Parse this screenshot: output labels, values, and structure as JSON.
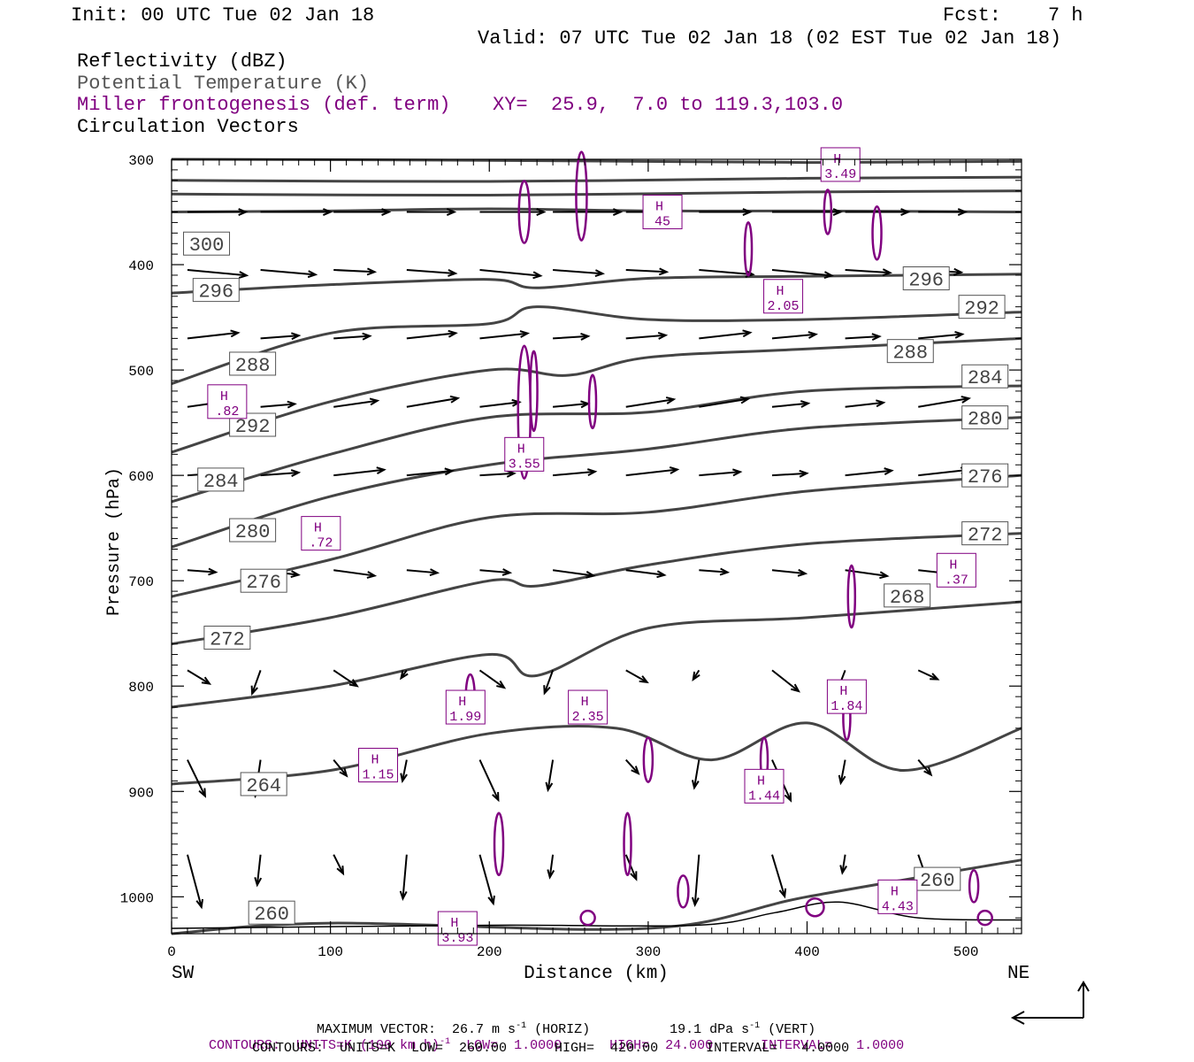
{
  "header": {
    "init": "Init: 00 UTC Tue 02 Jan 18",
    "fcst": "Fcst:    7 h",
    "valid": "Valid: 07 UTC Tue 02 Jan 18 (02 EST Tue 02 Jan 18)"
  },
  "legend": {
    "reflectivity": "Reflectivity (dBZ)",
    "theta": "Potential Temperature (K)",
    "miller": "Miller frontogenesis (def. term)",
    "xy": "XY=  25.9,  7.0 to 119.3,103.0",
    "vectors": "Circulation Vectors"
  },
  "footer": {
    "max_vector": "MAXIMUM VECTOR:  26.7 m s",
    "horiz": " (HORIZ)",
    "vert": "19.1 dPa s",
    "vert_tail": " (VERT)",
    "exp": "-1",
    "contours1_a": "CONTOURS:  UNITS=K (100 km h)",
    "contours1_b": "  LOW=  1.0000      HIGH=  24.000      INTERVAL=   1.0000",
    "contours2": "CONTOURS:  UNITS=K  LOW=  260.00      HIGH=  420.00      INTERVAL=   4.0000"
  },
  "colors": {
    "theta": "#444444",
    "frontogenesis": "#800080",
    "vectors": "#000000"
  },
  "chart_data": {
    "type": "cross-section",
    "xlabel": "Distance (km)",
    "ylabel": "Pressure (hPa)",
    "xlim": [
      0,
      535
    ],
    "ylim": [
      1035,
      300
    ],
    "x_ticks": [
      "0",
      "100",
      "200",
      "300",
      "400",
      "500"
    ],
    "y_ticks": [
      "300",
      "400",
      "500",
      "600",
      "700",
      "800",
      "900",
      "1000"
    ],
    "x_tick_values": [
      0,
      100,
      200,
      300,
      400,
      500
    ],
    "y_tick_values": [
      300,
      400,
      500,
      600,
      700,
      800,
      900,
      1000
    ],
    "left_end": "SW",
    "right_end": "NE",
    "isentropes": [
      {
        "label": "300",
        "label_x": 22,
        "label_p": 380,
        "points": [
          [
            0,
            350
          ],
          [
            100,
            349
          ],
          [
            200,
            347
          ],
          [
            300,
            349
          ],
          [
            400,
            349
          ],
          [
            535,
            350
          ]
        ]
      },
      {
        "label": "296",
        "label_x": 28,
        "label_p": 424,
        "points": [
          [
            0,
            427
          ],
          [
            100,
            419
          ],
          [
            200,
            414
          ],
          [
            230,
            422
          ],
          [
            300,
            413
          ],
          [
            400,
            411
          ],
          [
            535,
            409
          ]
        ]
      },
      {
        "label": "296",
        "label_x": 475,
        "label_p": 413,
        "points": []
      },
      {
        "label": "292",
        "label_x": 510,
        "label_p": 440,
        "points": [
          [
            0,
            513
          ],
          [
            100,
            465
          ],
          [
            200,
            456
          ],
          [
            230,
            440
          ],
          [
            300,
            452
          ],
          [
            400,
            452
          ],
          [
            535,
            445
          ]
        ]
      },
      {
        "label": "288",
        "label_x": 51,
        "label_p": 494,
        "points": [
          [
            0,
            578
          ],
          [
            100,
            530
          ],
          [
            200,
            500
          ],
          [
            250,
            505
          ],
          [
            300,
            488
          ],
          [
            400,
            480
          ],
          [
            535,
            470
          ]
        ]
      },
      {
        "label": "288",
        "label_x": 465,
        "label_p": 482,
        "points": []
      },
      {
        "label": "284",
        "label_x": 512,
        "label_p": 506,
        "points": [
          [
            0,
            625
          ],
          [
            100,
            580
          ],
          [
            200,
            545
          ],
          [
            300,
            540
          ],
          [
            400,
            520
          ],
          [
            535,
            515
          ]
        ]
      },
      {
        "label": "280",
        "label_x": 512,
        "label_p": 545,
        "points": [
          [
            0,
            668
          ],
          [
            100,
            620
          ],
          [
            200,
            590
          ],
          [
            300,
            575
          ],
          [
            400,
            555
          ],
          [
            535,
            545
          ]
        ]
      },
      {
        "label": "276",
        "label_x": 512,
        "label_p": 600,
        "points": [
          [
            0,
            715
          ],
          [
            100,
            680
          ],
          [
            200,
            640
          ],
          [
            300,
            635
          ],
          [
            400,
            615
          ],
          [
            535,
            600
          ]
        ]
      },
      {
        "label": "272",
        "label_x": 512,
        "label_p": 655,
        "points": [
          [
            0,
            760
          ],
          [
            100,
            735
          ],
          [
            200,
            700
          ],
          [
            230,
            705
          ],
          [
            300,
            685
          ],
          [
            400,
            665
          ],
          [
            535,
            655
          ]
        ]
      },
      {
        "label": "268",
        "label_x": 463,
        "label_p": 714,
        "points": [
          [
            0,
            820
          ],
          [
            100,
            800
          ],
          [
            200,
            770
          ],
          [
            230,
            790
          ],
          [
            300,
            745
          ],
          [
            400,
            735
          ],
          [
            535,
            720
          ]
        ]
      },
      {
        "label": "264",
        "label_x": 58,
        "label_p": 893,
        "points": [
          [
            0,
            893
          ],
          [
            100,
            880
          ],
          [
            200,
            845
          ],
          [
            280,
            840
          ],
          [
            340,
            870
          ],
          [
            400,
            835
          ],
          [
            460,
            880
          ],
          [
            535,
            840
          ]
        ]
      },
      {
        "label": "260",
        "label_x": 482,
        "label_p": 983,
        "points": [
          [
            0,
            1035
          ],
          [
            100,
            1025
          ],
          [
            300,
            1030
          ],
          [
            400,
            1000
          ],
          [
            535,
            965
          ]
        ]
      },
      {
        "label": "260",
        "label_x": 63,
        "label_p": 1015,
        "points": []
      },
      {
        "label": "272",
        "label_x": 35,
        "label_p": 754,
        "points": []
      },
      {
        "label": "276",
        "label_x": 58,
        "label_p": 700,
        "points": []
      },
      {
        "label": "280",
        "label_x": 51,
        "label_p": 652,
        "points": []
      },
      {
        "label": "284",
        "label_x": 31,
        "label_p": 604,
        "points": []
      },
      {
        "label": "292",
        "label_x": 51,
        "label_p": 552,
        "points": []
      }
    ],
    "frontogenesis_maxima": [
      {
        "label": "H",
        "value": "3.49",
        "x": 421,
        "p": 305
      },
      {
        "label": "H",
        "value": "45",
        "x": 309,
        "p": 350
      },
      {
        "label": "H",
        "value": "2.05",
        "x": 385,
        "p": 430
      },
      {
        "label": "H",
        "value": ".82",
        "x": 35,
        "p": 530
      },
      {
        "label": "H",
        "value": "3.55",
        "x": 222,
        "p": 580
      },
      {
        "label": "H",
        "value": ".72",
        "x": 94,
        "p": 655
      },
      {
        "label": "H",
        "value": ".37",
        "x": 494,
        "p": 690
      },
      {
        "label": "H",
        "value": "1.84",
        "x": 425,
        "p": 810
      },
      {
        "label": "H",
        "value": "1.99",
        "x": 185,
        "p": 820
      },
      {
        "label": "H",
        "value": "2.35",
        "x": 262,
        "p": 820
      },
      {
        "label": "H",
        "value": "1.15",
        "x": 130,
        "p": 875
      },
      {
        "label": "H",
        "value": "1.44",
        "x": 373,
        "p": 895
      },
      {
        "label": "H",
        "value": "4.43",
        "x": 457,
        "p": 1000
      },
      {
        "label": "H",
        "value": "3.93",
        "x": 180,
        "p": 1030
      }
    ]
  }
}
